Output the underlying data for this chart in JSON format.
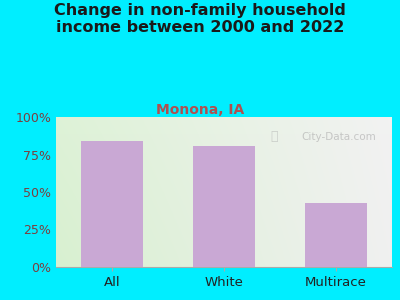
{
  "title": "Change in non-family household\nincome between 2000 and 2022",
  "subtitle": "Monona, IA",
  "categories": [
    "All",
    "White",
    "Multirace"
  ],
  "values": [
    84,
    81,
    43
  ],
  "bar_color": "#c9a8d4",
  "background_outer": "#00eeff",
  "bg_left": "#d8f0d0",
  "bg_right": "#f0f0f0",
  "title_color": "#1a1a1a",
  "subtitle_color": "#b05050",
  "tick_label_color": "#7a4040",
  "xlabel_color": "#222222",
  "ylim": [
    0,
    100
  ],
  "yticks": [
    0,
    25,
    50,
    75,
    100
  ],
  "ytick_labels": [
    "0%",
    "25%",
    "50%",
    "75%",
    "100%"
  ],
  "watermark": "City-Data.com",
  "title_fontsize": 11.5,
  "subtitle_fontsize": 10,
  "tick_fontsize": 9,
  "xlabel_fontsize": 9.5
}
